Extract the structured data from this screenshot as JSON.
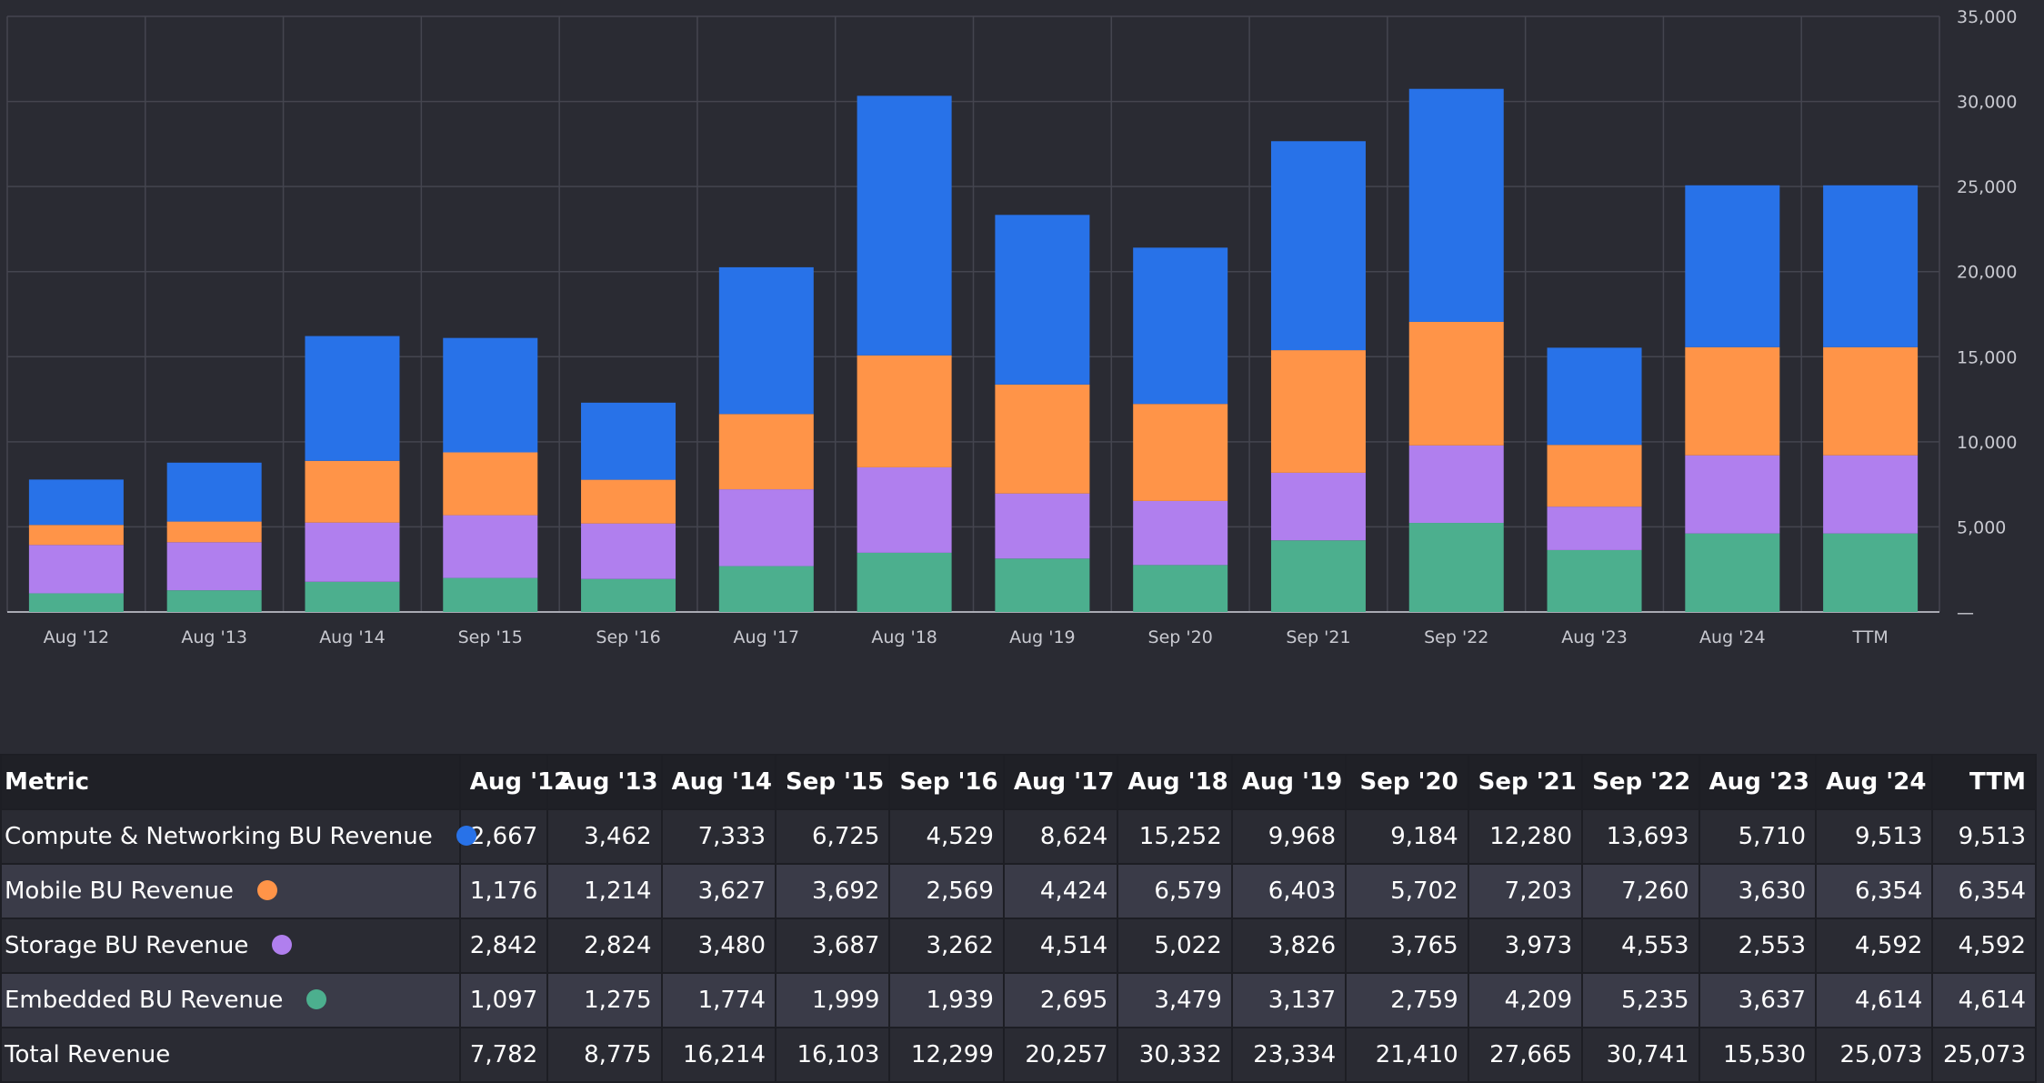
{
  "chart_data": {
    "type": "bar",
    "stacked": true,
    "categories": [
      "Aug '12",
      "Aug '13",
      "Aug '14",
      "Sep '15",
      "Sep '16",
      "Aug '17",
      "Aug '18",
      "Aug '19",
      "Sep '20",
      "Sep '21",
      "Sep '22",
      "Aug '23",
      "Aug '24",
      "TTM"
    ],
    "series": [
      {
        "name": "Embedded BU Revenue",
        "color": "#4caf8e",
        "values": [
          1097,
          1275,
          1774,
          1999,
          1939,
          2695,
          3479,
          3137,
          2759,
          4209,
          5235,
          3637,
          4614,
          4614
        ]
      },
      {
        "name": "Storage BU Revenue",
        "color": "#b07fee",
        "values": [
          2842,
          2824,
          3480,
          3687,
          3262,
          4514,
          5022,
          3826,
          3765,
          3973,
          4553,
          2553,
          4592,
          4592
        ]
      },
      {
        "name": "Mobile BU Revenue",
        "color": "#ff9448",
        "values": [
          1176,
          1214,
          3627,
          3692,
          2569,
          4424,
          6579,
          6403,
          5702,
          7203,
          7260,
          3630,
          6354,
          6354
        ]
      },
      {
        "name": "Compute & Networking BU Revenue",
        "color": "#2872e8",
        "values": [
          2667,
          3462,
          7333,
          6725,
          4529,
          8624,
          15252,
          9968,
          9184,
          12280,
          13693,
          5710,
          9513,
          9513
        ]
      }
    ],
    "ylim": [
      0,
      35000
    ],
    "yticks": [
      "—",
      "5,000",
      "10,000",
      "15,000",
      "20,000",
      "25,000",
      "30,000",
      "35,000"
    ],
    "grid": true,
    "legend": "none",
    "xlabel": "",
    "ylabel": ""
  },
  "table": {
    "metric_header": "Metric",
    "columns": [
      "Aug '12",
      "Aug '13",
      "Aug '14",
      "Sep '15",
      "Sep '16",
      "Aug '17",
      "Aug '18",
      "Aug '19",
      "Sep '20",
      "Sep '21",
      "Sep '22",
      "Aug '23",
      "Aug '24",
      "TTM"
    ],
    "rows": [
      {
        "label": "Compute & Networking BU Revenue",
        "dot_color": "#2872e8",
        "values": [
          "2,667",
          "3,462",
          "7,333",
          "6,725",
          "4,529",
          "8,624",
          "15,252",
          "9,968",
          "9,184",
          "12,280",
          "13,693",
          "5,710",
          "9,513",
          "9,513"
        ]
      },
      {
        "label": "Mobile BU Revenue",
        "dot_color": "#ff9448",
        "values": [
          "1,176",
          "1,214",
          "3,627",
          "3,692",
          "2,569",
          "4,424",
          "6,579",
          "6,403",
          "5,702",
          "7,203",
          "7,260",
          "3,630",
          "6,354",
          "6,354"
        ]
      },
      {
        "label": "Storage BU Revenue",
        "dot_color": "#b07fee",
        "values": [
          "2,842",
          "2,824",
          "3,480",
          "3,687",
          "3,262",
          "4,514",
          "5,022",
          "3,826",
          "3,765",
          "3,973",
          "4,553",
          "2,553",
          "4,592",
          "4,592"
        ]
      },
      {
        "label": "Embedded BU Revenue",
        "dot_color": "#4caf8e",
        "values": [
          "1,097",
          "1,275",
          "1,774",
          "1,999",
          "1,939",
          "2,695",
          "3,479",
          "3,137",
          "2,759",
          "4,209",
          "5,235",
          "3,637",
          "4,614",
          "4,614"
        ]
      },
      {
        "label": "Total Revenue",
        "dot_color": null,
        "values": [
          "7,782",
          "8,775",
          "16,214",
          "16,103",
          "12,299",
          "20,257",
          "30,332",
          "23,334",
          "21,410",
          "27,665",
          "30,741",
          "15,530",
          "25,073",
          "25,073"
        ]
      }
    ]
  }
}
